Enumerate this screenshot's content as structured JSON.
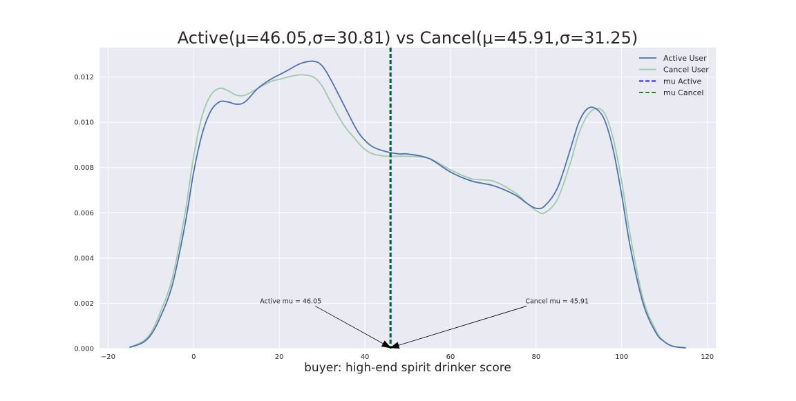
{
  "chart_data": {
    "type": "line",
    "title": "Active(μ=46.05,σ=30.81) vs Cancel(μ=45.91,σ=31.25)",
    "xlabel": "buyer: high-end spirit drinker score",
    "ylabel": "",
    "xlim": [
      -22,
      122
    ],
    "ylim": [
      0,
      0.0133
    ],
    "xticks": [
      -20,
      0,
      20,
      40,
      60,
      80,
      100,
      120
    ],
    "xtick_labels": [
      "−20",
      "0",
      "20",
      "40",
      "60",
      "80",
      "100",
      "120"
    ],
    "yticks": [
      0.0,
      0.002,
      0.004,
      0.006,
      0.008,
      0.01,
      0.012
    ],
    "ytick_labels": [
      "0.000",
      "0.002",
      "0.004",
      "0.006",
      "0.008",
      "0.010",
      "0.012"
    ],
    "grid": true,
    "background": "#eaeaf2",
    "legend_position": "top-right",
    "series": [
      {
        "name": "Active User",
        "color": "#4c72b0",
        "x": [
          -15,
          -12,
          -10,
          -8,
          -5,
          -2,
          0,
          2,
          4,
          6,
          8,
          10,
          12,
          15,
          18,
          20,
          22,
          25,
          28,
          30,
          32,
          35,
          38,
          40,
          42,
          45,
          48,
          50,
          55,
          60,
          65,
          70,
          75,
          78,
          80,
          82,
          85,
          88,
          90,
          92,
          94,
          96,
          98,
          100,
          102,
          105,
          108,
          110,
          112,
          115
        ],
        "y": [
          5e-05,
          0.00025,
          0.0006,
          0.0013,
          0.0028,
          0.0055,
          0.0078,
          0.0095,
          0.0105,
          0.0109,
          0.0109,
          0.0108,
          0.0109,
          0.0115,
          0.0119,
          0.0121,
          0.0123,
          0.0126,
          0.0127,
          0.0125,
          0.0119,
          0.0108,
          0.0097,
          0.0092,
          0.0089,
          0.0087,
          0.0086,
          0.0086,
          0.0084,
          0.0078,
          0.0074,
          0.0072,
          0.0068,
          0.0064,
          0.0062,
          0.0063,
          0.0071,
          0.0088,
          0.01,
          0.0106,
          0.0106,
          0.0101,
          0.0088,
          0.0068,
          0.0045,
          0.002,
          0.0007,
          0.0003,
          0.0001,
          3e-05
        ]
      },
      {
        "name": "Cancel User",
        "color": "#9ccbaa",
        "x": [
          -15,
          -12,
          -10,
          -8,
          -5,
          -2,
          0,
          2,
          4,
          6,
          8,
          10,
          12,
          15,
          18,
          20,
          22,
          25,
          28,
          30,
          32,
          35,
          38,
          40,
          42,
          45,
          48,
          50,
          55,
          60,
          65,
          70,
          75,
          78,
          80,
          82,
          85,
          88,
          90,
          92,
          94,
          96,
          98,
          100,
          102,
          105,
          108,
          110,
          112,
          115
        ],
        "y": [
          5e-05,
          0.0003,
          0.0007,
          0.0015,
          0.0031,
          0.006,
          0.0085,
          0.0103,
          0.0112,
          0.0115,
          0.0114,
          0.0112,
          0.0112,
          0.0115,
          0.0118,
          0.0119,
          0.012,
          0.0121,
          0.012,
          0.0116,
          0.0109,
          0.0099,
          0.0092,
          0.0088,
          0.0086,
          0.0085,
          0.0085,
          0.0085,
          0.0084,
          0.0079,
          0.0075,
          0.0074,
          0.0069,
          0.0064,
          0.0061,
          0.006,
          0.0066,
          0.0082,
          0.0095,
          0.0103,
          0.0106,
          0.0104,
          0.0093,
          0.0074,
          0.005,
          0.0022,
          0.0008,
          0.0003,
          0.0001,
          3e-05
        ]
      }
    ],
    "vlines": [
      {
        "name": "mu Active",
        "x": 46.05,
        "color": "#0000ff"
      },
      {
        "name": "mu Cancel",
        "x": 45.91,
        "color": "#008000"
      }
    ],
    "annotations": [
      {
        "text": "Active mu = 46.05",
        "text_x": 15.5,
        "text_y": 0.002,
        "arrow_to_x": 46.05,
        "arrow_to_y": 0.0
      },
      {
        "text": "Cancel mu = 45.91",
        "text_x": 77.5,
        "text_y": 0.002,
        "arrow_to_x": 45.91,
        "arrow_to_y": 0.0
      }
    ]
  }
}
